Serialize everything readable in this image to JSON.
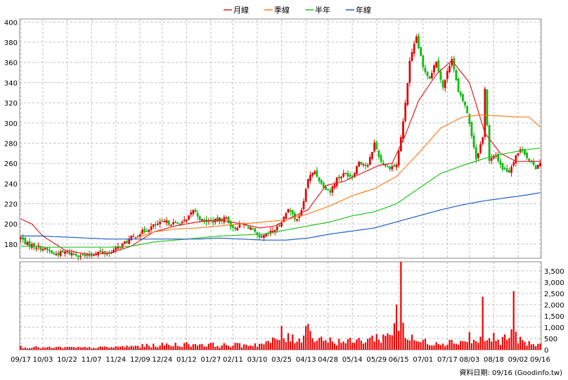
{
  "chart_data": {
    "type": "candlestick",
    "legend": [
      {
        "name": "月線",
        "color": "#e02020"
      },
      {
        "name": "季線",
        "color": "#ff7f1e"
      },
      {
        "name": "半年",
        "color": "#21c521"
      },
      {
        "name": "年線",
        "color": "#1f5fc8"
      }
    ],
    "price_axis": {
      "ylim": [
        166,
        403
      ],
      "ticks": [
        180,
        200,
        220,
        240,
        260,
        280,
        300,
        320,
        340,
        360,
        380,
        400
      ]
    },
    "volume_axis": {
      "ylim": [
        0,
        3900
      ],
      "ticks": [
        "0",
        "500",
        "1,000",
        "1,500",
        "2,000",
        "2,500",
        "3,000",
        "3,500"
      ],
      "values": [
        0,
        500,
        1000,
        1500,
        2000,
        2500,
        3000,
        3500
      ]
    },
    "x_ticks": [
      {
        "label": "09/17",
        "idx": 0
      },
      {
        "label": "10/03",
        "idx": 10
      },
      {
        "label": "10/22",
        "idx": 21
      },
      {
        "label": "11/07",
        "idx": 32
      },
      {
        "label": "11/24",
        "idx": 43
      },
      {
        "label": "12/09",
        "idx": 54
      },
      {
        "label": "12/24",
        "idx": 64
      },
      {
        "label": "01/12",
        "idx": 75
      },
      {
        "label": "01/27",
        "idx": 86
      },
      {
        "label": "02/11",
        "idx": 96
      },
      {
        "label": "03/10",
        "idx": 107
      },
      {
        "label": "03/25",
        "idx": 118
      },
      {
        "label": "04/13",
        "idx": 129
      },
      {
        "label": "04/28",
        "idx": 139
      },
      {
        "label": "05/14",
        "idx": 150
      },
      {
        "label": "05/29",
        "idx": 161
      },
      {
        "label": "06/15",
        "idx": 171
      },
      {
        "label": "07/01",
        "idx": 182
      },
      {
        "label": "07/17",
        "idx": 193
      },
      {
        "label": "08/03",
        "idx": 203
      },
      {
        "label": "08/18",
        "idx": 214
      },
      {
        "label": "09/02",
        "idx": 225
      },
      {
        "label": "09/16",
        "idx": 235
      }
    ],
    "n_days": 236,
    "close_keypoints": [
      [
        0,
        186
      ],
      [
        3,
        180
      ],
      [
        8,
        177
      ],
      [
        12,
        174
      ],
      [
        15,
        170
      ],
      [
        20,
        172
      ],
      [
        25,
        170
      ],
      [
        30,
        168
      ],
      [
        35,
        172
      ],
      [
        40,
        171
      ],
      [
        45,
        178
      ],
      [
        50,
        186
      ],
      [
        55,
        192
      ],
      [
        60,
        198
      ],
      [
        65,
        202
      ],
      [
        70,
        200
      ],
      [
        75,
        203
      ],
      [
        78,
        214
      ],
      [
        82,
        203
      ],
      [
        88,
        203
      ],
      [
        93,
        206
      ],
      [
        96,
        195
      ],
      [
        100,
        200
      ],
      [
        104,
        196
      ],
      [
        108,
        185
      ],
      [
        112,
        190
      ],
      [
        116,
        196
      ],
      [
        119,
        206
      ],
      [
        121,
        216
      ],
      [
        124,
        204
      ],
      [
        127,
        212
      ],
      [
        130,
        245
      ],
      [
        133,
        252
      ],
      [
        136,
        240
      ],
      [
        140,
        232
      ],
      [
        143,
        245
      ],
      [
        147,
        250
      ],
      [
        150,
        247
      ],
      [
        153,
        262
      ],
      [
        157,
        257
      ],
      [
        160,
        280
      ],
      [
        163,
        262
      ],
      [
        166,
        256
      ],
      [
        170,
        258
      ],
      [
        173,
        300
      ],
      [
        176,
        360
      ],
      [
        179,
        385
      ],
      [
        182,
        355
      ],
      [
        185,
        345
      ],
      [
        188,
        362
      ],
      [
        191,
        335
      ],
      [
        195,
        365
      ],
      [
        198,
        330
      ],
      [
        201,
        318
      ],
      [
        203,
        300
      ],
      [
        206,
        265
      ],
      [
        209,
        285
      ],
      [
        210,
        335
      ],
      [
        212,
        262
      ],
      [
        215,
        268
      ],
      [
        218,
        255
      ],
      [
        221,
        252
      ],
      [
        224,
        268
      ],
      [
        227,
        275
      ],
      [
        230,
        262
      ],
      [
        233,
        256
      ],
      [
        235,
        262
      ]
    ],
    "volume_keypoints": [
      [
        0,
        130
      ],
      [
        10,
        90
      ],
      [
        20,
        100
      ],
      [
        30,
        90
      ],
      [
        40,
        110
      ],
      [
        50,
        150
      ],
      [
        60,
        190
      ],
      [
        70,
        230
      ],
      [
        80,
        250
      ],
      [
        90,
        200
      ],
      [
        100,
        210
      ],
      [
        110,
        260
      ],
      [
        118,
        500
      ],
      [
        125,
        480
      ],
      [
        130,
        700
      ],
      [
        140,
        400
      ],
      [
        150,
        350
      ],
      [
        160,
        520
      ],
      [
        166,
        600
      ],
      [
        170,
        1250
      ],
      [
        173,
        600
      ],
      [
        180,
        360
      ],
      [
        190,
        320
      ],
      [
        200,
        380
      ],
      [
        206,
        360
      ],
      [
        210,
        500
      ],
      [
        215,
        320
      ],
      [
        222,
        640
      ],
      [
        228,
        280
      ],
      [
        235,
        200
      ]
    ],
    "volume_spikes": [
      [
        118,
        1050
      ],
      [
        129,
        1050
      ],
      [
        130,
        1150
      ],
      [
        170,
        2000
      ],
      [
        172,
        3900
      ],
      [
        173,
        1200
      ],
      [
        203,
        780
      ],
      [
        209,
        2350
      ],
      [
        214,
        750
      ],
      [
        223,
        2600
      ],
      [
        224,
        800
      ]
    ],
    "ma_ma20": [
      [
        0,
        205
      ],
      [
        5,
        200
      ],
      [
        10,
        188
      ],
      [
        20,
        174
      ],
      [
        30,
        170
      ],
      [
        40,
        171
      ],
      [
        50,
        178
      ],
      [
        60,
        192
      ],
      [
        70,
        198
      ],
      [
        80,
        202
      ],
      [
        90,
        204
      ],
      [
        100,
        200
      ],
      [
        108,
        196
      ],
      [
        115,
        198
      ],
      [
        122,
        206
      ],
      [
        130,
        214
      ],
      [
        138,
        238
      ],
      [
        146,
        242
      ],
      [
        154,
        250
      ],
      [
        162,
        258
      ],
      [
        168,
        260
      ],
      [
        174,
        288
      ],
      [
        180,
        322
      ],
      [
        188,
        348
      ],
      [
        195,
        362
      ],
      [
        203,
        340
      ],
      [
        210,
        290
      ],
      [
        217,
        270
      ],
      [
        224,
        262
      ],
      [
        230,
        262
      ],
      [
        235,
        262
      ]
    ],
    "ma_ma60": [
      [
        52,
        186
      ],
      [
        60,
        192
      ],
      [
        70,
        195
      ],
      [
        80,
        196
      ],
      [
        90,
        198
      ],
      [
        100,
        200
      ],
      [
        110,
        202
      ],
      [
        120,
        204
      ],
      [
        130,
        210
      ],
      [
        140,
        218
      ],
      [
        150,
        228
      ],
      [
        160,
        235
      ],
      [
        170,
        247
      ],
      [
        180,
        270
      ],
      [
        190,
        295
      ],
      [
        200,
        306
      ],
      [
        208,
        308
      ],
      [
        216,
        307
      ],
      [
        224,
        306
      ],
      [
        230,
        306
      ],
      [
        235,
        296
      ]
    ],
    "ma_ma120": [
      [
        0,
        178
      ],
      [
        10,
        177
      ],
      [
        20,
        177
      ],
      [
        30,
        177
      ],
      [
        40,
        177
      ],
      [
        50,
        178
      ],
      [
        60,
        182
      ],
      [
        70,
        184
      ],
      [
        80,
        186
      ],
      [
        90,
        188
      ],
      [
        100,
        189
      ],
      [
        110,
        190
      ],
      [
        120,
        194
      ],
      [
        130,
        198
      ],
      [
        140,
        202
      ],
      [
        150,
        208
      ],
      [
        160,
        212
      ],
      [
        170,
        220
      ],
      [
        180,
        235
      ],
      [
        190,
        250
      ],
      [
        200,
        258
      ],
      [
        210,
        265
      ],
      [
        220,
        270
      ],
      [
        230,
        274
      ],
      [
        235,
        275
      ]
    ],
    "ma_ma240": [
      [
        0,
        188
      ],
      [
        10,
        188
      ],
      [
        20,
        187
      ],
      [
        30,
        186
      ],
      [
        40,
        185
      ],
      [
        50,
        185
      ],
      [
        60,
        185
      ],
      [
        70,
        185
      ],
      [
        80,
        185
      ],
      [
        90,
        186
      ],
      [
        100,
        185
      ],
      [
        110,
        184
      ],
      [
        120,
        184
      ],
      [
        130,
        186
      ],
      [
        140,
        190
      ],
      [
        150,
        193
      ],
      [
        160,
        196
      ],
      [
        170,
        202
      ],
      [
        180,
        208
      ],
      [
        190,
        214
      ],
      [
        200,
        219
      ],
      [
        210,
        223
      ],
      [
        220,
        226
      ],
      [
        230,
        229
      ],
      [
        235,
        231
      ]
    ]
  },
  "footer": {
    "source": "資料日期: 09/16  (Goodinfo.tw)"
  }
}
